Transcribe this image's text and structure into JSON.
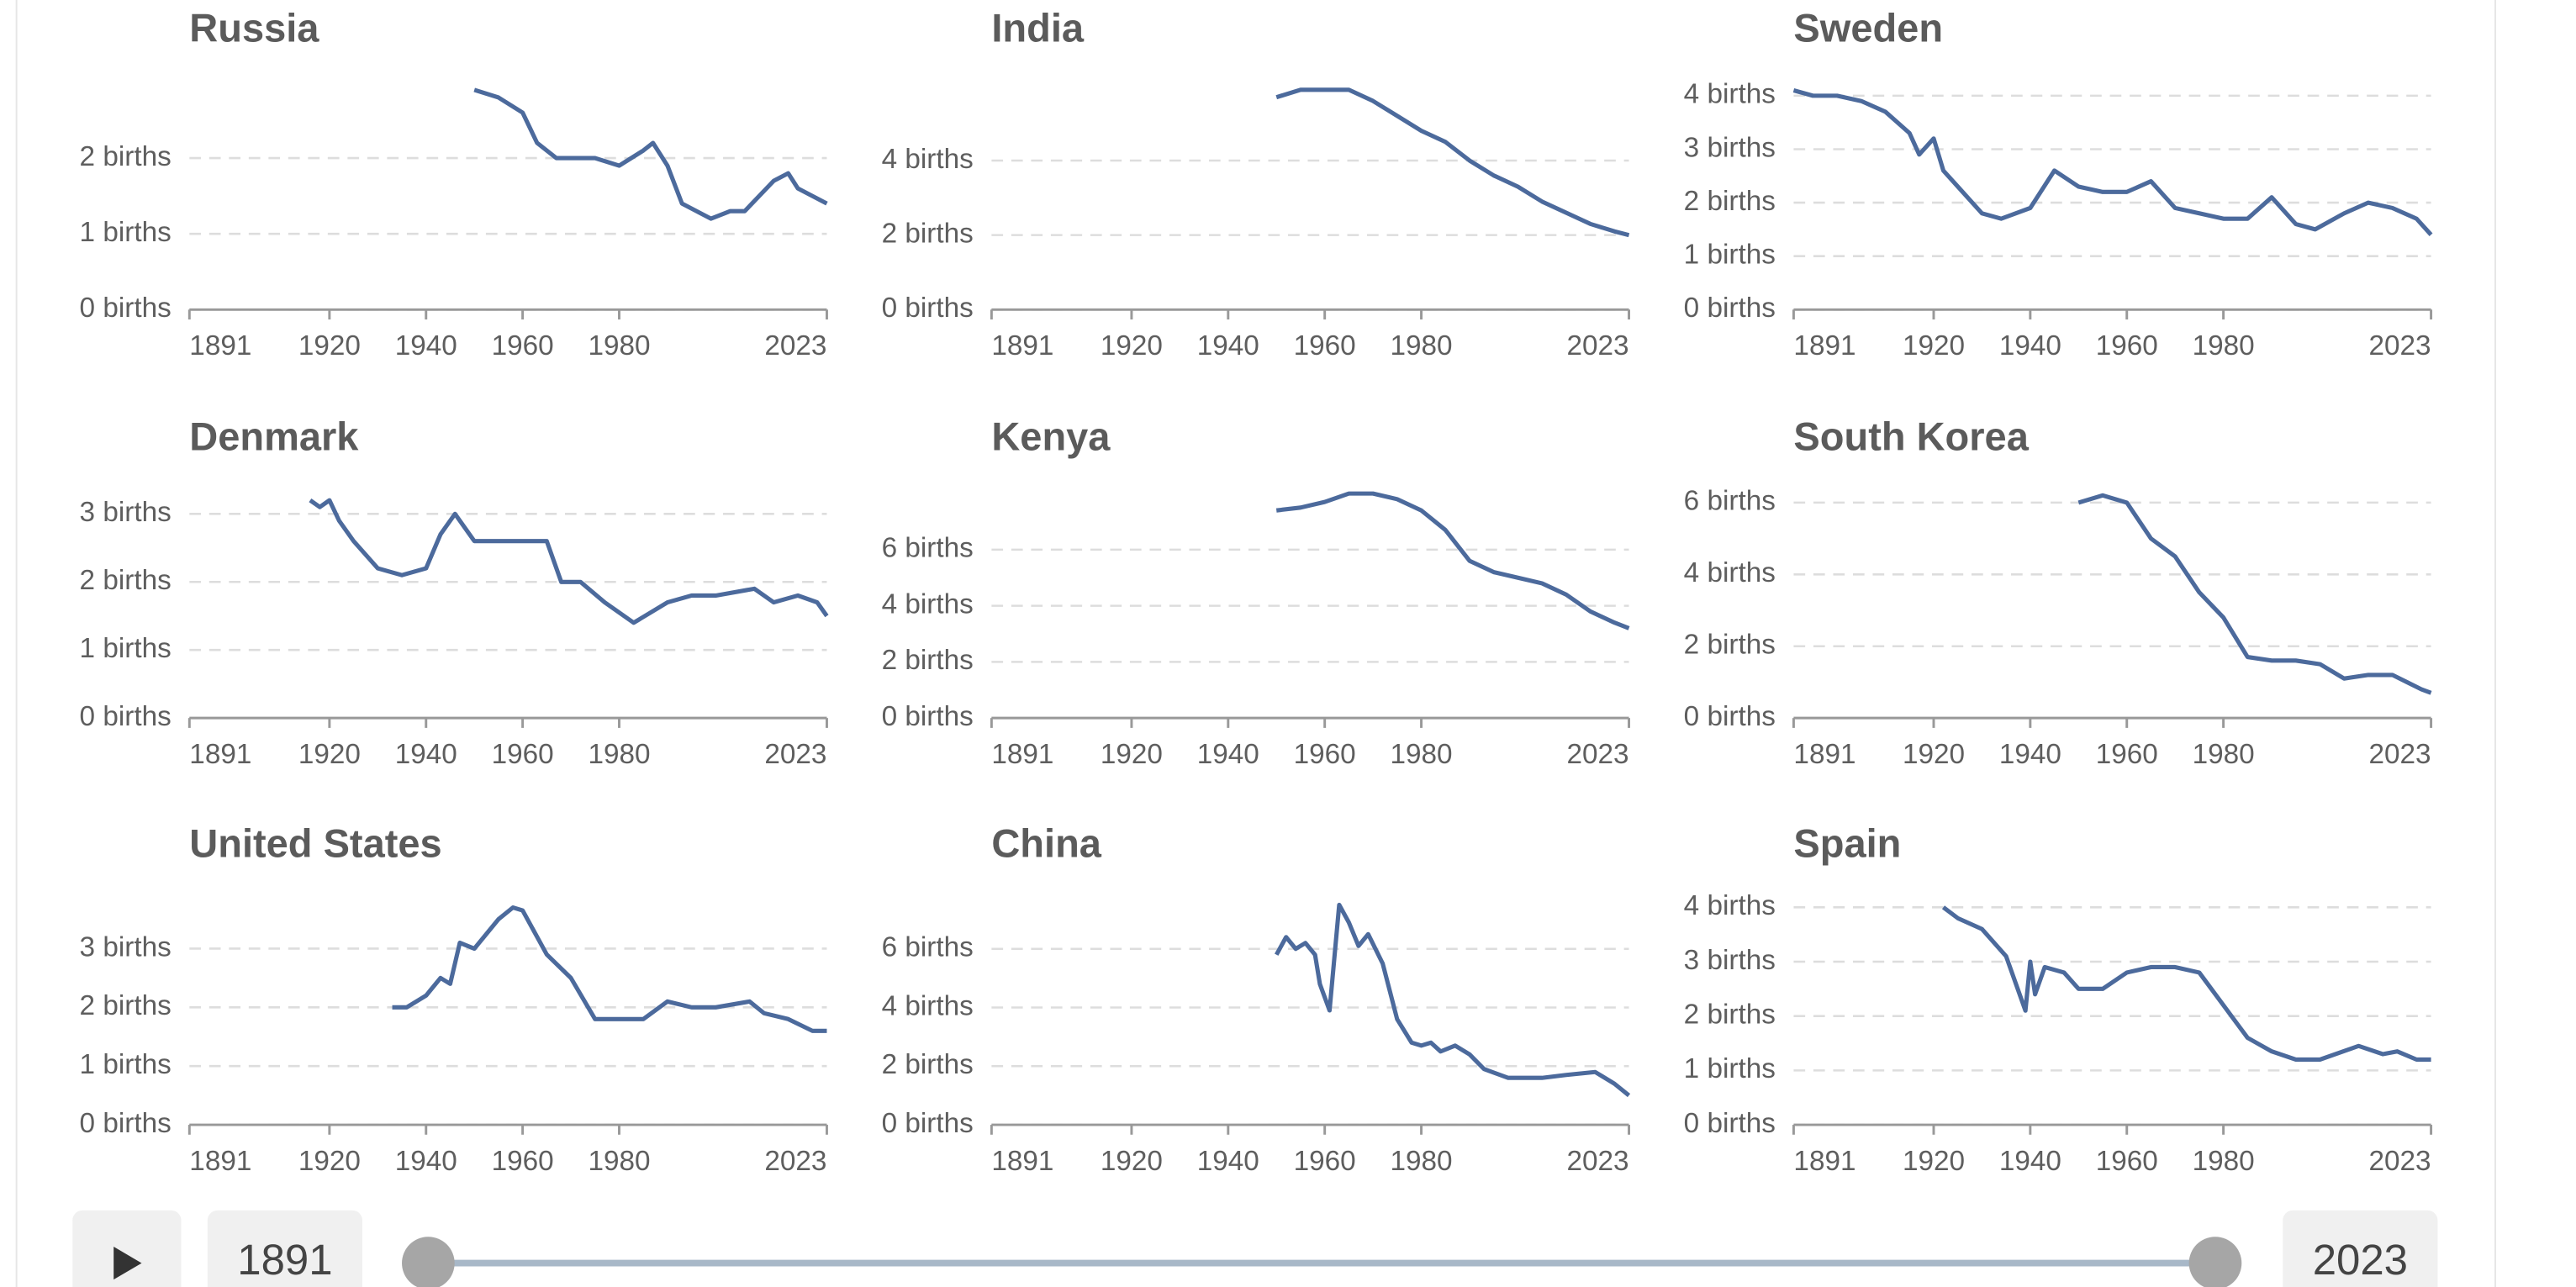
{
  "chart_data": [
    {
      "type": "line",
      "title": "Russia",
      "color": "#4c6a9c",
      "grid": true,
      "x": [
        1950,
        1955,
        1960,
        1963,
        1967,
        1970,
        1975,
        1980,
        1985,
        1987,
        1990,
        1993,
        1996,
        1999,
        2003,
        2006,
        2009,
        2012,
        2015,
        2017,
        2020,
        2023
      ],
      "values": [
        2.9,
        2.8,
        2.6,
        2.2,
        2.0,
        2.0,
        2.0,
        1.9,
        2.1,
        2.2,
        1.9,
        1.4,
        1.3,
        1.2,
        1.3,
        1.3,
        1.5,
        1.7,
        1.8,
        1.6,
        1.5,
        1.4
      ],
      "xlim": [
        1891,
        2023
      ],
      "xticks": [
        1891,
        1920,
        1940,
        1960,
        1980,
        2023
      ],
      "ylim": [
        0,
        3
      ],
      "yticks": [
        {
          "value": 0,
          "label": "0 births"
        },
        {
          "value": 1,
          "label": "1 births"
        },
        {
          "value": 2,
          "label": "2 births"
        }
      ]
    },
    {
      "type": "line",
      "title": "India",
      "color": "#4c6a9c",
      "grid": true,
      "x": [
        1950,
        1955,
        1960,
        1965,
        1970,
        1975,
        1980,
        1985,
        1990,
        1995,
        2000,
        2005,
        2010,
        2015,
        2020,
        2023
      ],
      "values": [
        5.7,
        5.9,
        5.9,
        5.9,
        5.6,
        5.2,
        4.8,
        4.5,
        4.0,
        3.6,
        3.3,
        2.9,
        2.6,
        2.3,
        2.1,
        2.0
      ],
      "xlim": [
        1891,
        2023
      ],
      "xticks": [
        1891,
        1920,
        1940,
        1960,
        1980,
        2023
      ],
      "ylim": [
        0,
        6.1
      ],
      "yticks": [
        {
          "value": 0,
          "label": "0 births"
        },
        {
          "value": 2,
          "label": "2 births"
        },
        {
          "value": 4,
          "label": "4 births"
        }
      ]
    },
    {
      "type": "line",
      "title": "Sweden",
      "color": "#4c6a9c",
      "grid": true,
      "x": [
        1891,
        1895,
        1900,
        1905,
        1910,
        1915,
        1917,
        1920,
        1922,
        1925,
        1930,
        1934,
        1940,
        1945,
        1950,
        1955,
        1960,
        1965,
        1970,
        1975,
        1980,
        1985,
        1990,
        1995,
        1999,
        2005,
        2010,
        2015,
        2020,
        2023
      ],
      "values": [
        4.1,
        4.0,
        4.0,
        3.9,
        3.7,
        3.3,
        2.9,
        3.2,
        2.6,
        2.3,
        1.8,
        1.7,
        1.9,
        2.6,
        2.3,
        2.2,
        2.2,
        2.4,
        1.9,
        1.8,
        1.7,
        1.7,
        2.1,
        1.6,
        1.5,
        1.8,
        2.0,
        1.9,
        1.7,
        1.4
      ],
      "xlim": [
        1891,
        2023
      ],
      "xticks": [
        1891,
        1920,
        1940,
        1960,
        1980,
        2023
      ],
      "ylim": [
        0,
        4.25
      ],
      "yticks": [
        {
          "value": 0,
          "label": "0 births"
        },
        {
          "value": 1,
          "label": "1 births"
        },
        {
          "value": 2,
          "label": "2 births"
        },
        {
          "value": 3,
          "label": "3 births"
        },
        {
          "value": 4,
          "label": "4 births"
        }
      ]
    },
    {
      "type": "line",
      "title": "Denmark",
      "color": "#4c6a9c",
      "grid": true,
      "x": [
        1916,
        1918,
        1920,
        1922,
        1925,
        1930,
        1935,
        1940,
        1943,
        1946,
        1950,
        1955,
        1960,
        1965,
        1968,
        1972,
        1977,
        1983,
        1990,
        1995,
        2000,
        2008,
        2012,
        2017,
        2021,
        2023
      ],
      "values": [
        3.2,
        3.1,
        3.2,
        2.9,
        2.6,
        2.2,
        2.1,
        2.2,
        2.7,
        3.0,
        2.6,
        2.6,
        2.6,
        2.6,
        2.0,
        2.0,
        1.7,
        1.4,
        1.7,
        1.8,
        1.8,
        1.9,
        1.7,
        1.8,
        1.7,
        1.5
      ],
      "xlim": [
        1891,
        2023
      ],
      "xticks": [
        1891,
        1920,
        1940,
        1960,
        1980,
        2023
      ],
      "ylim": [
        0,
        3.34
      ],
      "yticks": [
        {
          "value": 0,
          "label": "0 births"
        },
        {
          "value": 1,
          "label": "1 births"
        },
        {
          "value": 2,
          "label": "2 births"
        },
        {
          "value": 3,
          "label": "3 births"
        }
      ]
    },
    {
      "type": "line",
      "title": "Kenya",
      "color": "#4c6a9c",
      "grid": true,
      "x": [
        1950,
        1955,
        1960,
        1965,
        1970,
        1975,
        1980,
        1985,
        1990,
        1995,
        2000,
        2005,
        2010,
        2015,
        2020,
        2023
      ],
      "values": [
        7.4,
        7.5,
        7.7,
        8.0,
        8.0,
        7.8,
        7.4,
        6.7,
        5.6,
        5.2,
        5.0,
        4.8,
        4.4,
        3.8,
        3.4,
        3.2
      ],
      "xlim": [
        1891,
        2023
      ],
      "xticks": [
        1891,
        1920,
        1940,
        1960,
        1980,
        2023
      ],
      "ylim": [
        0,
        8.1
      ],
      "yticks": [
        {
          "value": 0,
          "label": "0 births"
        },
        {
          "value": 2,
          "label": "2 births"
        },
        {
          "value": 4,
          "label": "4 births"
        },
        {
          "value": 6,
          "label": "6 births"
        }
      ]
    },
    {
      "type": "line",
      "title": "South Korea",
      "color": "#4c6a9c",
      "grid": true,
      "x": [
        1950,
        1955,
        1960,
        1965,
        1970,
        1975,
        1980,
        1985,
        1990,
        1995,
        2000,
        2005,
        2010,
        2015,
        2018,
        2021,
        2023
      ],
      "values": [
        6.0,
        6.2,
        6.0,
        5.0,
        4.5,
        3.5,
        2.8,
        1.7,
        1.6,
        1.6,
        1.5,
        1.1,
        1.2,
        1.2,
        1.0,
        0.8,
        0.7
      ],
      "xlim": [
        1891,
        2023
      ],
      "xticks": [
        1891,
        1920,
        1940,
        1960,
        1980,
        2023
      ],
      "ylim": [
        0,
        6.33
      ],
      "yticks": [
        {
          "value": 0,
          "label": "0 births"
        },
        {
          "value": 2,
          "label": "2 births"
        },
        {
          "value": 4,
          "label": "4 births"
        },
        {
          "value": 6,
          "label": "6 births"
        }
      ]
    },
    {
      "type": "line",
      "title": "United States",
      "color": "#4c6a9c",
      "grid": true,
      "x": [
        1933,
        1936,
        1940,
        1943,
        1945,
        1947,
        1950,
        1955,
        1958,
        1960,
        1965,
        1970,
        1975,
        1980,
        1985,
        1990,
        1995,
        2000,
        2007,
        2010,
        2015,
        2020,
        2023
      ],
      "values": [
        2.0,
        2.0,
        2.2,
        2.5,
        2.4,
        3.1,
        3.0,
        3.5,
        3.7,
        3.65,
        2.9,
        2.5,
        1.8,
        1.8,
        1.8,
        2.1,
        2.0,
        2.0,
        2.1,
        1.9,
        1.8,
        1.6,
        1.6
      ],
      "xlim": [
        1891,
        2023
      ],
      "xticks": [
        1891,
        1920,
        1940,
        1960,
        1980,
        2023
      ],
      "ylim": [
        0,
        3.87
      ],
      "yticks": [
        {
          "value": 0,
          "label": "0 births"
        },
        {
          "value": 1,
          "label": "1 births"
        },
        {
          "value": 2,
          "label": "2 births"
        },
        {
          "value": 3,
          "label": "3 births"
        }
      ]
    },
    {
      "type": "line",
      "title": "China",
      "color": "#4c6a9c",
      "grid": true,
      "x": [
        1950,
        1952,
        1954,
        1956,
        1958,
        1959,
        1961,
        1963,
        1965,
        1967,
        1969,
        1972,
        1975,
        1978,
        1980,
        1982,
        1984,
        1987,
        1990,
        1993,
        1998,
        2005,
        2010,
        2016,
        2020,
        2023
      ],
      "values": [
        5.8,
        6.4,
        6.0,
        6.2,
        5.8,
        4.8,
        3.9,
        7.5,
        6.9,
        6.1,
        6.5,
        5.5,
        3.6,
        2.8,
        2.7,
        2.8,
        2.5,
        2.7,
        2.4,
        1.9,
        1.6,
        1.6,
        1.7,
        1.8,
        1.4,
        1.0
      ],
      "xlim": [
        1891,
        2023
      ],
      "xticks": [
        1891,
        1920,
        1940,
        1960,
        1980,
        2023
      ],
      "ylim": [
        0,
        7.75
      ],
      "yticks": [
        {
          "value": 0,
          "label": "0 births"
        },
        {
          "value": 2,
          "label": "2 births"
        },
        {
          "value": 4,
          "label": "4 births"
        },
        {
          "value": 6,
          "label": "6 births"
        }
      ]
    },
    {
      "type": "line",
      "title": "Spain",
      "color": "#4c6a9c",
      "grid": true,
      "x": [
        1922,
        1925,
        1930,
        1935,
        1939,
        1940,
        1941,
        1943,
        1947,
        1950,
        1955,
        1960,
        1965,
        1970,
        1975,
        1980,
        1985,
        1990,
        1995,
        2000,
        2008,
        2013,
        2016,
        2020,
        2023
      ],
      "values": [
        4.0,
        3.8,
        3.6,
        3.1,
        2.1,
        3.0,
        2.4,
        2.9,
        2.8,
        2.5,
        2.5,
        2.8,
        2.9,
        2.9,
        2.8,
        2.2,
        1.6,
        1.35,
        1.2,
        1.2,
        1.45,
        1.3,
        1.35,
        1.2,
        1.2
      ],
      "xlim": [
        1891,
        2023
      ],
      "xticks": [
        1891,
        1920,
        1940,
        1960,
        1980,
        2023
      ],
      "ylim": [
        0,
        4.18
      ],
      "yticks": [
        {
          "value": 0,
          "label": "0 births"
        },
        {
          "value": 1,
          "label": "1 births"
        },
        {
          "value": 2,
          "label": "2 births"
        },
        {
          "value": 3,
          "label": "3 births"
        },
        {
          "value": 4,
          "label": "4 births"
        }
      ]
    }
  ],
  "controls": {
    "start_year": "1891",
    "end_year": "2023"
  }
}
